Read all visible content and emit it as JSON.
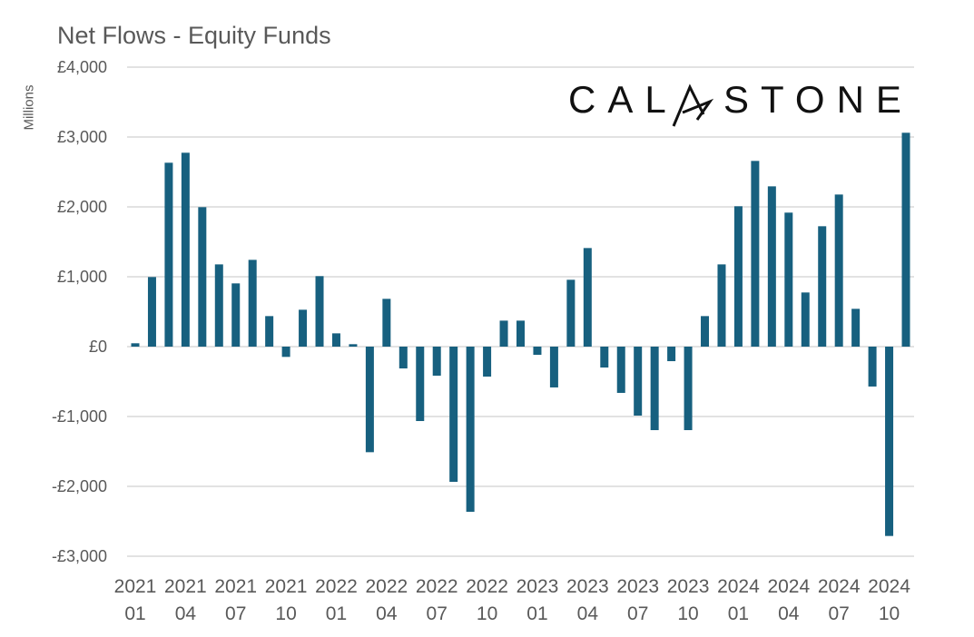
{
  "chart_data": {
    "type": "bar",
    "title": "Net Flows - Equity Funds",
    "ylabel": "Millions",
    "xlabel": "",
    "logo_text": "CALASTONE",
    "ylim": [
      -3000,
      4000
    ],
    "grid": true,
    "bar_color": "#17607f",
    "yticks": [
      {
        "value": 4000,
        "label": "£4,000"
      },
      {
        "value": 3000,
        "label": "£3,000"
      },
      {
        "value": 2000,
        "label": "£2,000"
      },
      {
        "value": 1000,
        "label": "£1,000"
      },
      {
        "value": 0,
        "label": "£0"
      },
      {
        "value": -1000,
        "label": "-£1,000"
      },
      {
        "value": -2000,
        "label": "-£2,000"
      },
      {
        "value": -3000,
        "label": "-£3,000"
      }
    ],
    "xticks": [
      {
        "index": 0,
        "year": "2021",
        "month": "01"
      },
      {
        "index": 3,
        "year": "2021",
        "month": "04"
      },
      {
        "index": 6,
        "year": "2021",
        "month": "07"
      },
      {
        "index": 9,
        "year": "2021",
        "month": "10"
      },
      {
        "index": 12,
        "year": "2022",
        "month": "01"
      },
      {
        "index": 15,
        "year": "2022",
        "month": "04"
      },
      {
        "index": 18,
        "year": "2022",
        "month": "07"
      },
      {
        "index": 21,
        "year": "2022",
        "month": "10"
      },
      {
        "index": 24,
        "year": "2023",
        "month": "01"
      },
      {
        "index": 27,
        "year": "2023",
        "month": "04"
      },
      {
        "index": 30,
        "year": "2023",
        "month": "07"
      },
      {
        "index": 33,
        "year": "2023",
        "month": "10"
      },
      {
        "index": 36,
        "year": "2024",
        "month": "01"
      },
      {
        "index": 39,
        "year": "2024",
        "month": "04"
      },
      {
        "index": 42,
        "year": "2024",
        "month": "07"
      },
      {
        "index": 45,
        "year": "2024",
        "month": "10"
      }
    ],
    "categories": [
      "2021-01",
      "2021-02",
      "2021-03",
      "2021-04",
      "2021-05",
      "2021-06",
      "2021-07",
      "2021-08",
      "2021-09",
      "2021-10",
      "2021-11",
      "2021-12",
      "2022-01",
      "2022-02",
      "2022-03",
      "2022-04",
      "2022-05",
      "2022-06",
      "2022-07",
      "2022-08",
      "2022-09",
      "2022-10",
      "2022-11",
      "2022-12",
      "2023-01",
      "2023-02",
      "2023-03",
      "2023-04",
      "2023-05",
      "2023-06",
      "2023-07",
      "2023-08",
      "2023-09",
      "2023-10",
      "2023-11",
      "2023-12",
      "2024-01",
      "2024-02",
      "2024-03",
      "2024-04",
      "2024-05",
      "2024-06",
      "2024-07",
      "2024-08",
      "2024-09",
      "2024-10",
      "2024-11"
    ],
    "values": [
      48,
      996,
      2632,
      2775,
      1996,
      1177,
      905,
      1242,
      437,
      -147,
      528,
      1009,
      190,
      35,
      -1511,
      684,
      -312,
      -1065,
      -416,
      -1935,
      -2364,
      -429,
      372,
      372,
      -117,
      -584,
      957,
      1411,
      -299,
      -662,
      -987,
      -1195,
      -208,
      -1195,
      437,
      1177,
      2009,
      2658,
      2294,
      1918,
      775,
      1723,
      2177,
      541,
      -571,
      -2710,
      3061
    ]
  }
}
